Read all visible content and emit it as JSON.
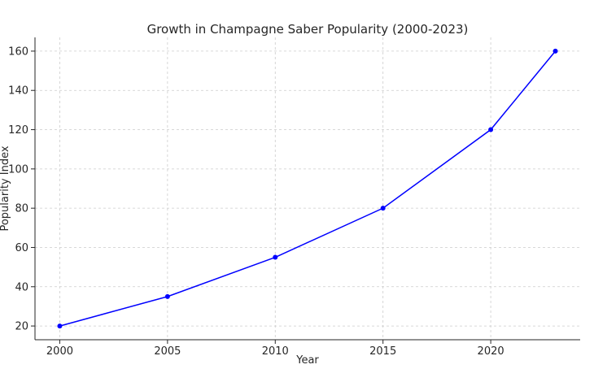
{
  "chart_data": {
    "type": "line",
    "title": "Growth in Champagne Saber Popularity (2000-2023)",
    "xlabel": "Year",
    "ylabel": "Popularity Index",
    "x": [
      2000,
      2005,
      2010,
      2015,
      2020,
      2023
    ],
    "series": [
      {
        "values": [
          20,
          35,
          55,
          80,
          120,
          160
        ],
        "color": "#0000ff",
        "marker": "circle"
      }
    ],
    "xticks": [
      2000,
      2005,
      2010,
      2015,
      2020
    ],
    "yticks": [
      20,
      40,
      60,
      80,
      100,
      120,
      140,
      160
    ],
    "xlim": [
      1998.85,
      2024.15
    ],
    "ylim": [
      13,
      167
    ],
    "grid": true,
    "grid_style": "dashed",
    "grid_color": "#cccccc"
  }
}
